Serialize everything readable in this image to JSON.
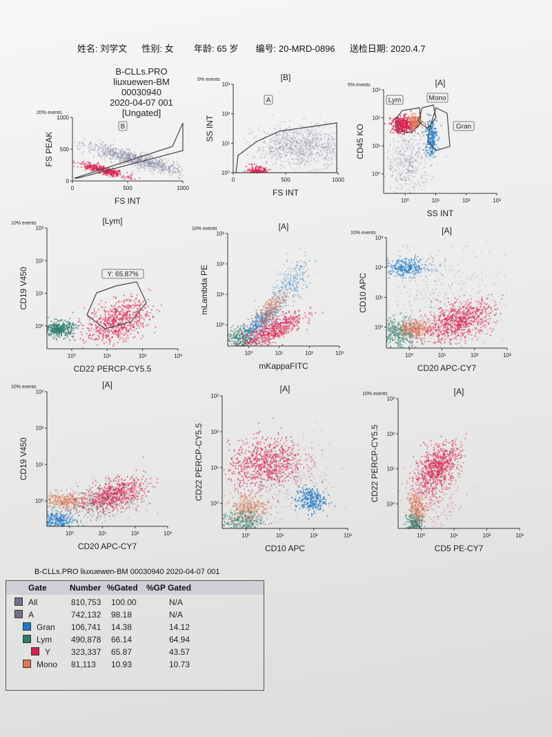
{
  "header": {
    "name_label": "姓名:",
    "name_value": "刘学文",
    "sex_label": "性别:",
    "sex_value": "女",
    "age_label": "年龄:",
    "age_value": "65 岁",
    "id_label": "编号:",
    "id_value": "20-MRD-0896",
    "date_label": "送检日期:",
    "date_value": "2020.4.7"
  },
  "report_info": {
    "protocol": "B-CLLs.PRO",
    "sample": "liuxuewen-BM",
    "number": "00030940",
    "run": "2020-04-07 001",
    "gate": "[Ungated]"
  },
  "colors": {
    "Gran": "#1f78c8",
    "Lym": "#2e7d6e",
    "Y": "#d8204e",
    "Mono": "#e07856",
    "gray": "#7a7f9a"
  },
  "chart_data": [
    {
      "id": "p1",
      "type": "scatter",
      "events_label": "20% events",
      "gate_title": "",
      "x_label": "FS INT",
      "y_label": "FS PEAK",
      "x_scale": "linear",
      "y_scale": "linear",
      "xlim": [
        0,
        1000
      ],
      "ylim": [
        0,
        1000
      ],
      "x_ticks": [
        "0",
        "500",
        "1000"
      ],
      "y_ticks": [
        "0",
        "500",
        "1000"
      ],
      "gate_tags": [
        "B"
      ],
      "populations": [
        "gray",
        "Y"
      ]
    },
    {
      "id": "p2",
      "type": "scatter",
      "events_label": "5% events",
      "gate_title": "[B]",
      "x_label": "FS INT",
      "y_label": "SS INT",
      "x_scale": "linear",
      "y_scale": "log",
      "xlim": [
        0,
        1000
      ],
      "ylim": [
        0,
        3
      ],
      "x_ticks": [
        "0",
        "500",
        "1000"
      ],
      "y_ticks": [
        "10⁰",
        "10¹",
        "10²",
        "10³"
      ],
      "gate_tags": [
        "A"
      ],
      "populations": [
        "gray",
        "Y"
      ]
    },
    {
      "id": "p3",
      "type": "scatter",
      "events_label": "5% events",
      "gate_title": "[A]",
      "x_label": "SS INT",
      "y_label": "CD45 KO",
      "x_scale": "log",
      "y_scale": "log",
      "xlim": [
        -0.7,
        3
      ],
      "ylim": [
        -0.7,
        3
      ],
      "x_ticks": [
        "10⁰",
        "10¹",
        "10²",
        "10³"
      ],
      "y_ticks": [
        "10⁰",
        "10¹",
        "10²",
        "10³"
      ],
      "gate_tags": [
        "Lym",
        "Mono",
        "Gran"
      ],
      "populations": [
        "gray",
        "Y",
        "Mono",
        "Gran"
      ]
    },
    {
      "id": "p4",
      "type": "scatter",
      "events_label": "10% events",
      "gate_title": "[Lym]",
      "x_label": "CD22 PERCP-CY5.5",
      "y_label": "CD19 V450",
      "x_scale": "log",
      "y_scale": "log",
      "xlim": [
        -0.7,
        3
      ],
      "ylim": [
        -0.7,
        3
      ],
      "x_ticks": [
        "10⁰",
        "10¹",
        "10²",
        "10³"
      ],
      "y_ticks": [
        "10⁰",
        "10¹",
        "10²",
        "10³"
      ],
      "gate_tags": [
        "Y: 65.87%"
      ],
      "populations": [
        "Lym",
        "Y"
      ]
    },
    {
      "id": "p5",
      "type": "scatter",
      "events_label": "10% events",
      "gate_title": "[A]",
      "x_label": "mKappaFITC",
      "y_label": "mLambda PE",
      "x_scale": "log",
      "y_scale": "log",
      "xlim": [
        -0.7,
        3
      ],
      "ylim": [
        -0.7,
        3
      ],
      "x_ticks": [
        "10⁰",
        "10¹",
        "10²",
        "10³"
      ],
      "y_ticks": [
        "10⁰",
        "10¹",
        "10²",
        "10³"
      ],
      "gate_tags": [],
      "populations": [
        "Lym",
        "Gran",
        "Mono",
        "Y"
      ]
    },
    {
      "id": "p6",
      "type": "scatter",
      "events_label": "10% events",
      "gate_title": "[A]",
      "x_label": "CD20 APC-CY7",
      "y_label": "CD10 APC",
      "x_scale": "log",
      "y_scale": "log",
      "xlim": [
        -0.7,
        3
      ],
      "ylim": [
        -0.7,
        3
      ],
      "x_ticks": [
        "10⁰",
        "10¹",
        "10²",
        "10³"
      ],
      "y_ticks": [
        "10⁰",
        "10¹",
        "10²",
        "10³"
      ],
      "gate_tags": [],
      "populations": [
        "Lym",
        "Gran",
        "Mono",
        "Y"
      ]
    },
    {
      "id": "p7",
      "type": "scatter",
      "events_label": "10% events",
      "gate_title": "[A]",
      "x_label": "CD20 APC-CY7",
      "y_label": "CD19 V450",
      "x_scale": "log",
      "y_scale": "log",
      "xlim": [
        -0.7,
        3
      ],
      "ylim": [
        -0.7,
        3
      ],
      "x_ticks": [
        "10⁰",
        "10¹",
        "10²",
        "10³"
      ],
      "y_ticks": [
        "10⁰",
        "10¹",
        "10²",
        "10³"
      ],
      "gate_tags": [],
      "populations": [
        "Gran",
        "Lym",
        "Mono",
        "Y"
      ]
    },
    {
      "id": "p8",
      "type": "scatter",
      "events_label": "",
      "gate_title": "[A]",
      "x_label": "CD10 APC",
      "y_label": "CD22 PERCP-CY5.5",
      "x_scale": "log",
      "y_scale": "log",
      "xlim": [
        -0.7,
        3
      ],
      "ylim": [
        -0.7,
        3
      ],
      "x_ticks": [
        "10⁰",
        "10¹",
        "10²",
        "10³"
      ],
      "y_ticks": [
        "10⁰",
        "10¹",
        "10²",
        "10³"
      ],
      "gate_tags": [],
      "populations": [
        "Lym",
        "Mono",
        "Gran",
        "Y"
      ]
    },
    {
      "id": "p9",
      "type": "scatter",
      "events_label": "10% events",
      "gate_title": "[A]",
      "x_label": "CD5 PE-CY7",
      "y_label": "CD22 PERCP-CY5.5",
      "x_scale": "log",
      "y_scale": "log",
      "xlim": [
        -0.7,
        3
      ],
      "ylim": [
        -0.7,
        3
      ],
      "x_ticks": [
        "10⁰",
        "10¹",
        "10²",
        "10³"
      ],
      "y_ticks": [
        "10⁰",
        "10¹",
        "10²",
        "10³"
      ],
      "gate_tags": [],
      "populations": [
        "Lym",
        "Mono",
        "Y"
      ]
    },
    {
      "type": "table",
      "title": "B-CLLs.PRO liuxuewen-BM 00030940 2020-04-07 001",
      "columns": [
        "Gate",
        "Number",
        "%Gated",
        "%GP Gated"
      ],
      "rows": [
        {
          "gate": "All",
          "number": "810,753",
          "gated": "100.00",
          "gp": "N/A",
          "level": 0,
          "color": "#7a6d8a"
        },
        {
          "gate": "A",
          "number": "742,132",
          "gated": "98.18",
          "gp": "N/A",
          "level": 0,
          "color": "#7a6d8a"
        },
        {
          "gate": "Gran",
          "number": "106,741",
          "gated": "14.38",
          "gp": "14.12",
          "level": 1,
          "color": "#1f78c8"
        },
        {
          "gate": "Lym",
          "number": "490,878",
          "gated": "66.14",
          "gp": "64.94",
          "level": 1,
          "color": "#2e7d6e"
        },
        {
          "gate": "Y",
          "number": "323,337",
          "gated": "65.87",
          "gp": "43.57",
          "level": 2,
          "color": "#d8204e"
        },
        {
          "gate": "Mono",
          "number": "81,113",
          "gated": "10.93",
          "gp": "10.73",
          "level": 1,
          "color": "#e07856"
        }
      ]
    }
  ]
}
